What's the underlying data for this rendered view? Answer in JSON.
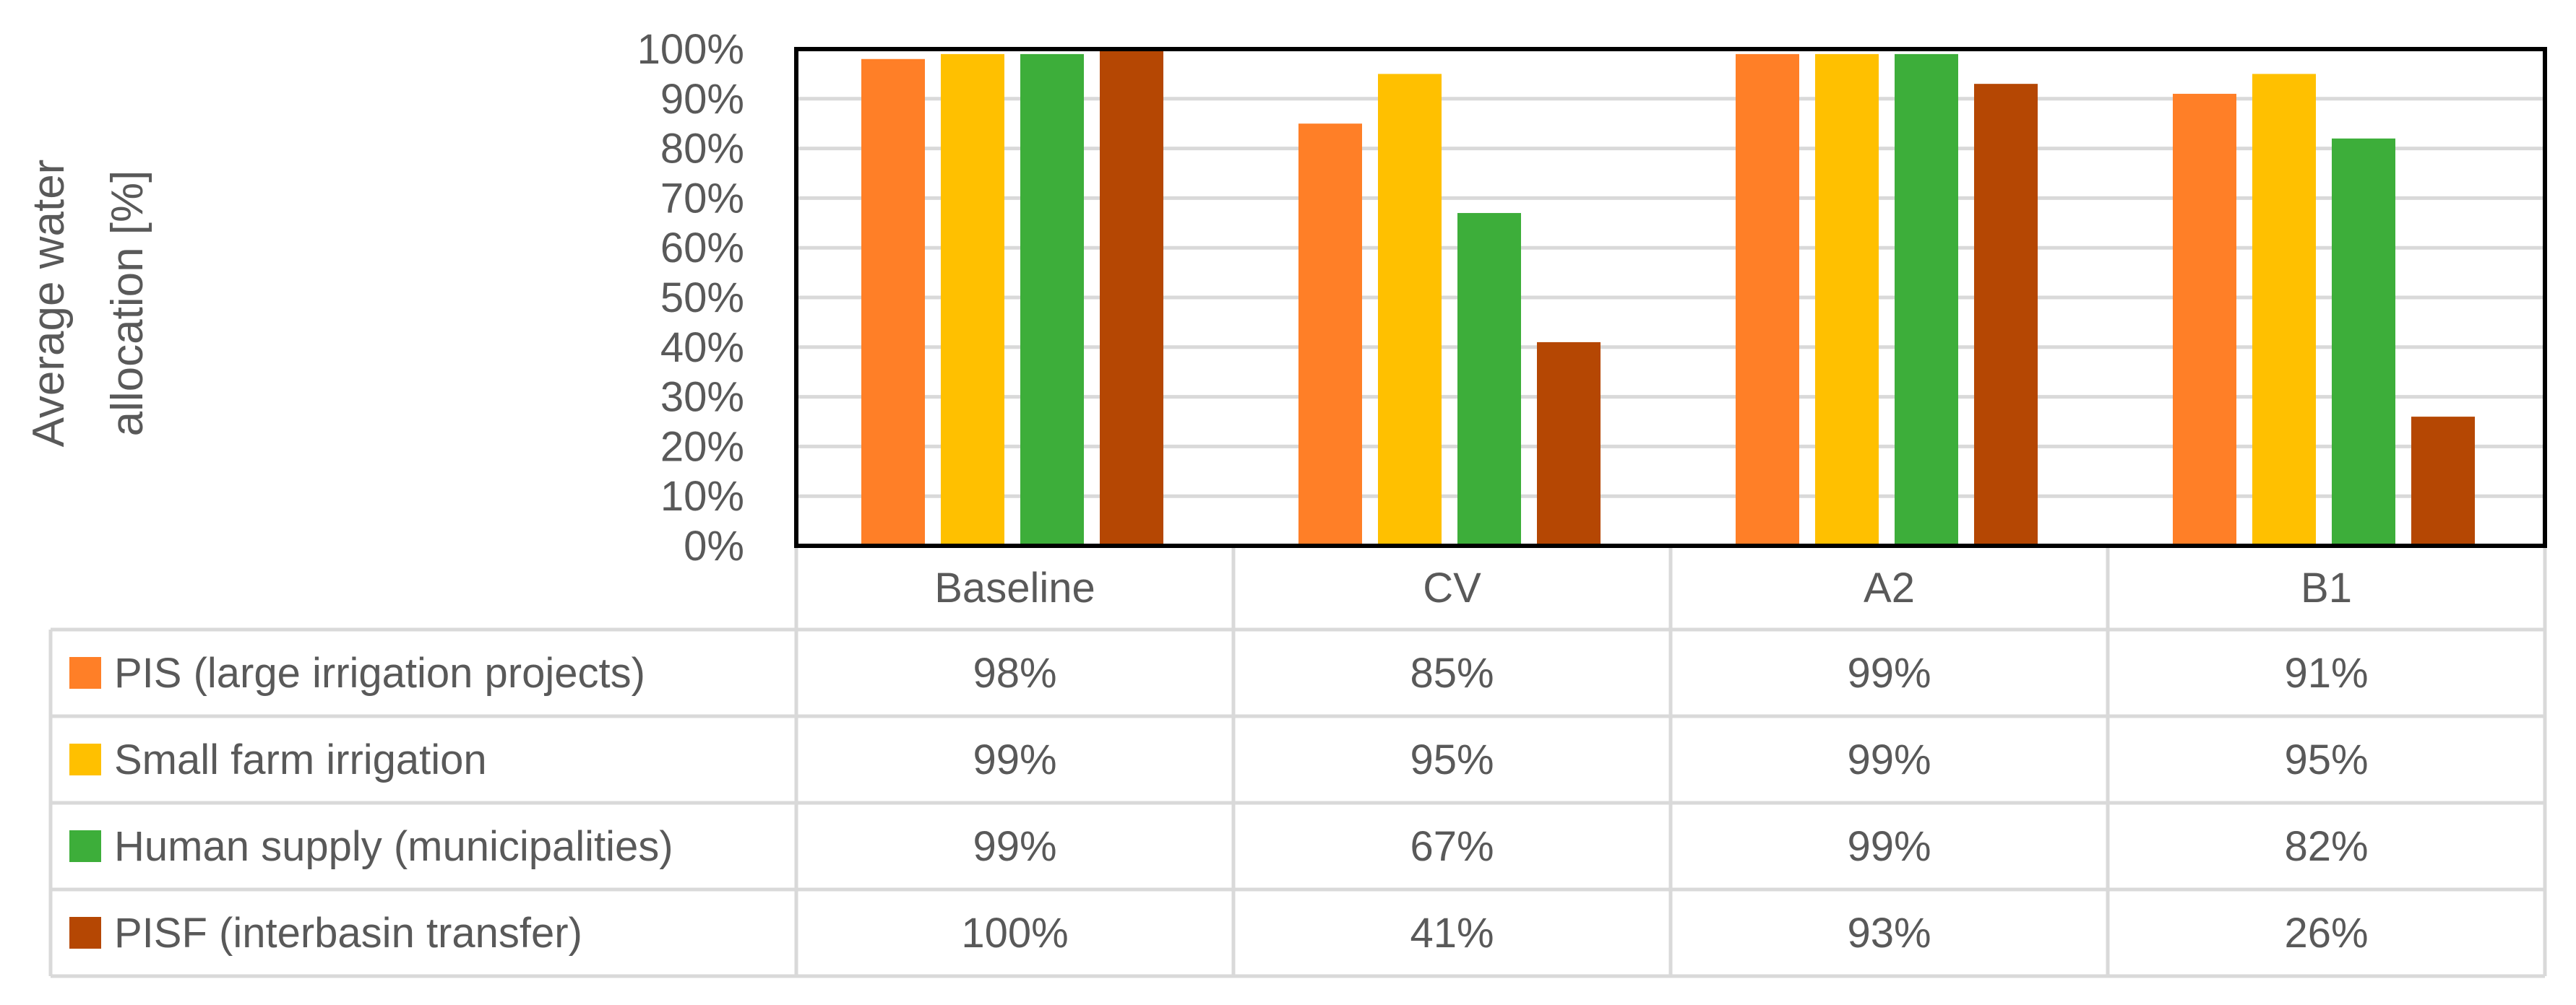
{
  "chart_data": {
    "type": "bar",
    "ylabel_line1": "Average water",
    "ylabel_line2": "allocation [%]",
    "ylim": [
      0,
      100
    ],
    "y_ticks": [
      0,
      10,
      20,
      30,
      40,
      50,
      60,
      70,
      80,
      90,
      100
    ],
    "y_tick_labels": [
      "0%",
      "10%",
      "20%",
      "30%",
      "40%",
      "50%",
      "60%",
      "70%",
      "80%",
      "90%",
      "100%"
    ],
    "grid": true,
    "legend_placement": "data-table-left",
    "categories": [
      "Baseline",
      "CV",
      "A2",
      "B1"
    ],
    "series": [
      {
        "name": "PIS (large irrigation projects)",
        "color": "#FF7F27",
        "values": [
          98,
          85,
          99,
          91
        ],
        "labels": [
          "98%",
          "85%",
          "99%",
          "91%"
        ]
      },
      {
        "name": "Small farm irrigation",
        "color": "#FFC000",
        "values": [
          99,
          95,
          99,
          95
        ],
        "labels": [
          "99%",
          "95%",
          "99%",
          "95%"
        ]
      },
      {
        "name": "Human supply (municipalities)",
        "color": "#3DAE3A",
        "values": [
          99,
          67,
          99,
          82
        ],
        "labels": [
          "99%",
          "67%",
          "99%",
          "82%"
        ]
      },
      {
        "name": "PISF (interbasin transfer)",
        "color": "#B54703",
        "values": [
          100,
          41,
          93,
          26
        ],
        "labels": [
          "100%",
          "41%",
          "93%",
          "26%"
        ]
      }
    ],
    "colors": {
      "text": "#595959",
      "grid": "#D9D9D9",
      "table_border": "#D9D9D9",
      "plot_border": "#000000"
    }
  }
}
